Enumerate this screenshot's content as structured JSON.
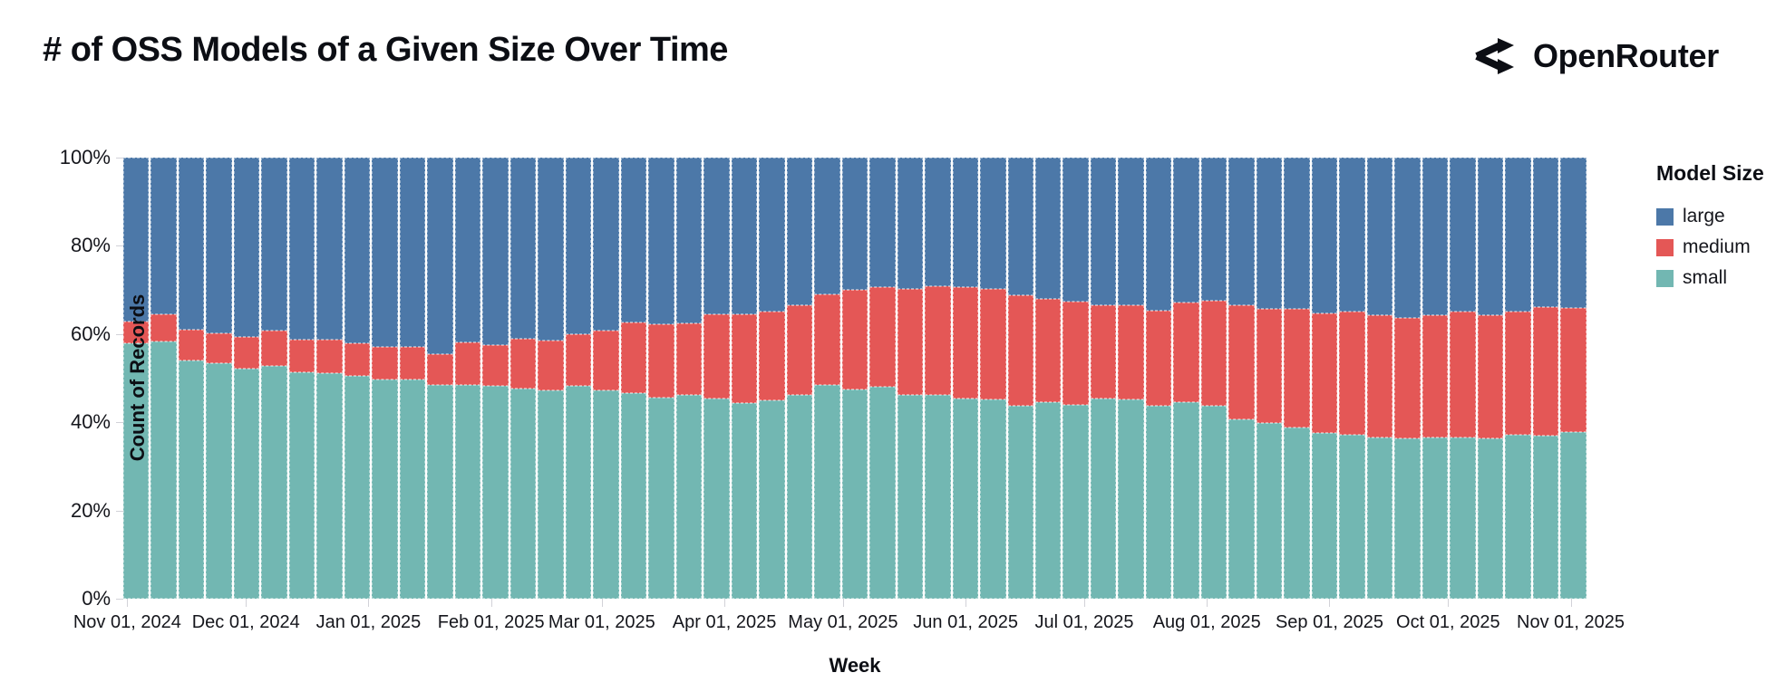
{
  "header": {
    "title": "# of OSS Models of a Given Size Over Time",
    "brand": "OpenRouter"
  },
  "chart_data": {
    "type": "bar",
    "stacked": true,
    "normalized": true,
    "title": "# of OSS Models of a Given Size Over Time",
    "xlabel": "Week",
    "ylabel": "Count of Records",
    "legend_title": "Model Size",
    "legend_position": "right",
    "grid": true,
    "ylim": [
      0,
      100
    ],
    "y_ticks": [
      {
        "label": "0%",
        "value": 0
      },
      {
        "label": "20%",
        "value": 20
      },
      {
        "label": "40%",
        "value": 40
      },
      {
        "label": "60%",
        "value": 60
      },
      {
        "label": "80%",
        "value": 80
      },
      {
        "label": "100%",
        "value": 100
      }
    ],
    "x_ticks": [
      {
        "label": "Nov 01, 2024",
        "day": 0
      },
      {
        "label": "Dec 01, 2024",
        "day": 30
      },
      {
        "label": "Jan 01, 2025",
        "day": 61
      },
      {
        "label": "Feb 01, 2025",
        "day": 92
      },
      {
        "label": "Mar 01, 2025",
        "day": 120
      },
      {
        "label": "Apr 01, 2025",
        "day": 151
      },
      {
        "label": "May 01, 2025",
        "day": 181
      },
      {
        "label": "Jun 01, 2025",
        "day": 212
      },
      {
        "label": "Jul 01, 2025",
        "day": 242
      },
      {
        "label": "Aug 01, 2025",
        "day": 273
      },
      {
        "label": "Sep 01, 2025",
        "day": 304
      },
      {
        "label": "Oct 01, 2025",
        "day": 334
      },
      {
        "label": "Nov 01, 2025",
        "day": 365
      }
    ],
    "categories": [
      "Nov 01, 2024",
      "Nov 08, 2024",
      "Nov 15, 2024",
      "Nov 22, 2024",
      "Nov 29, 2024",
      "Dec 06, 2024",
      "Dec 13, 2024",
      "Dec 20, 2024",
      "Dec 27, 2024",
      "Jan 03, 2025",
      "Jan 10, 2025",
      "Jan 17, 2025",
      "Jan 24, 2025",
      "Jan 31, 2025",
      "Feb 07, 2025",
      "Feb 14, 2025",
      "Feb 21, 2025",
      "Feb 28, 2025",
      "Mar 07, 2025",
      "Mar 14, 2025",
      "Mar 21, 2025",
      "Mar 28, 2025",
      "Apr 04, 2025",
      "Apr 11, 2025",
      "Apr 18, 2025",
      "Apr 25, 2025",
      "May 02, 2025",
      "May 09, 2025",
      "May 16, 2025",
      "May 23, 2025",
      "May 30, 2025",
      "Jun 06, 2025",
      "Jun 13, 2025",
      "Jun 20, 2025",
      "Jun 27, 2025",
      "Jul 04, 2025",
      "Jul 11, 2025",
      "Jul 18, 2025",
      "Jul 25, 2025",
      "Aug 01, 2025",
      "Aug 08, 2025",
      "Aug 15, 2025",
      "Aug 22, 2025",
      "Aug 29, 2025",
      "Sep 05, 2025",
      "Sep 12, 2025",
      "Sep 19, 2025",
      "Sep 26, 2025",
      "Oct 03, 2025",
      "Oct 10, 2025",
      "Oct 17, 2025",
      "Oct 24, 2025",
      "Oct 31, 2025"
    ],
    "series": [
      {
        "name": "large",
        "color": "#4c78a8",
        "values": [
          37.2,
          35.5,
          39.0,
          39.9,
          40.7,
          39.3,
          41.2,
          41.2,
          42.1,
          43.0,
          42.9,
          44.5,
          41.9,
          42.6,
          41.0,
          41.4,
          40.0,
          39.3,
          37.4,
          37.7,
          37.5,
          35.6,
          35.6,
          34.9,
          33.5,
          31.0,
          29.9,
          29.4,
          29.8,
          29.1,
          29.4,
          29.7,
          31.3,
          32.0,
          32.7,
          33.4,
          33.5,
          34.8,
          32.8,
          32.4,
          33.4,
          34.3,
          34.2,
          35.3,
          35.0,
          35.8,
          36.4,
          35.8,
          35.0,
          35.7,
          35.0,
          33.9,
          34.1
        ]
      },
      {
        "name": "medium",
        "color": "#e45756",
        "values": [
          4.8,
          6.1,
          6.9,
          6.7,
          7.1,
          7.9,
          7.5,
          7.7,
          7.4,
          7.4,
          7.5,
          7.0,
          9.6,
          9.2,
          11.3,
          11.3,
          11.8,
          13.4,
          15.9,
          16.8,
          16.4,
          19.0,
          20.0,
          20.2,
          20.2,
          20.5,
          22.6,
          22.5,
          23.9,
          24.8,
          25.2,
          25.2,
          25.0,
          23.5,
          23.3,
          21.2,
          21.4,
          21.4,
          22.6,
          23.8,
          25.9,
          25.8,
          27.0,
          27.1,
          27.8,
          27.7,
          27.2,
          27.6,
          28.4,
          27.9,
          27.8,
          29.2,
          28.1
        ]
      },
      {
        "name": "small",
        "color": "#72b7b2",
        "values": [
          58.0,
          58.4,
          54.1,
          53.4,
          52.2,
          52.8,
          51.3,
          51.1,
          50.5,
          49.6,
          49.6,
          48.5,
          48.5,
          48.2,
          47.7,
          47.3,
          48.2,
          47.3,
          46.7,
          45.5,
          46.1,
          45.4,
          44.4,
          44.9,
          46.3,
          48.5,
          47.5,
          48.1,
          46.3,
          46.1,
          45.4,
          45.1,
          43.7,
          44.5,
          44.0,
          45.4,
          45.1,
          43.8,
          44.6,
          43.8,
          40.7,
          39.9,
          38.8,
          37.6,
          37.2,
          36.5,
          36.4,
          36.6,
          36.6,
          36.4,
          37.2,
          36.9,
          37.8
        ]
      }
    ]
  }
}
